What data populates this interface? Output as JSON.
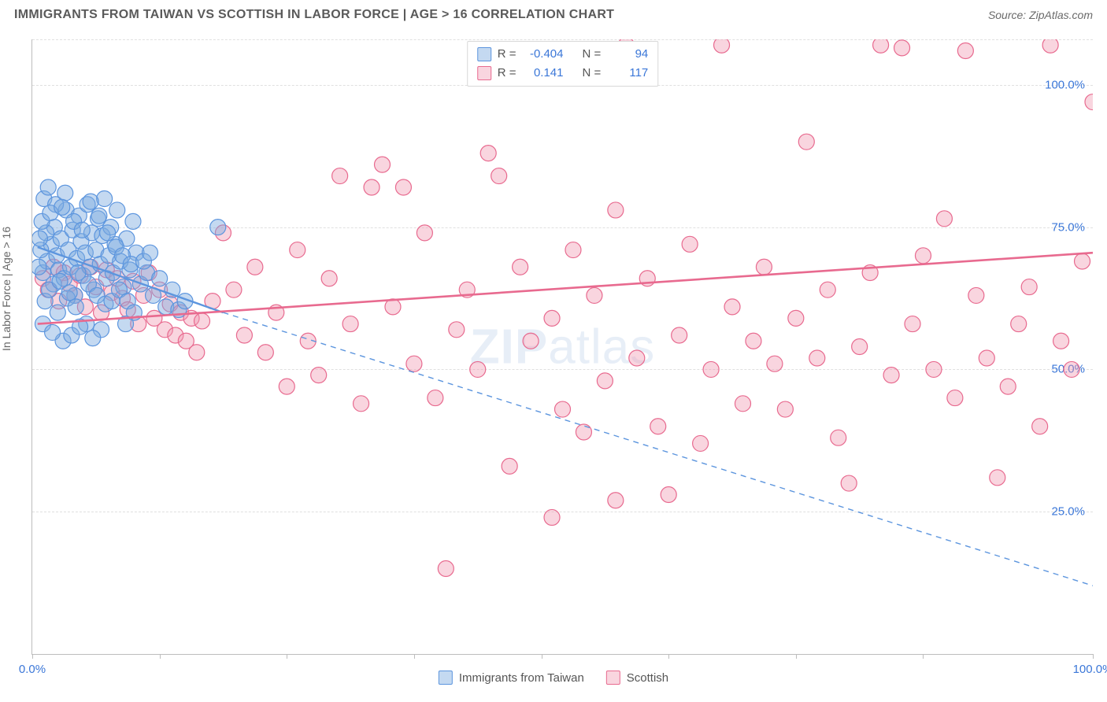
{
  "header": {
    "title": "IMMIGRANTS FROM TAIWAN VS SCOTTISH IN LABOR FORCE | AGE > 16 CORRELATION CHART",
    "source_prefix": "Source: ",
    "source_name": "ZipAtlas.com"
  },
  "chart": {
    "type": "scatter",
    "ylabel": "In Labor Force | Age > 16",
    "xlim": [
      0,
      100
    ],
    "ylim": [
      0,
      108
    ],
    "xtick_positions": [
      0,
      12,
      24,
      36,
      48,
      60,
      72,
      84,
      100
    ],
    "xtick_labels_shown": {
      "0": "0.0%",
      "100": "100.0%"
    },
    "ytick_positions": [
      25,
      50,
      75,
      100
    ],
    "ytick_labels": [
      "25.0%",
      "50.0%",
      "75.0%",
      "100.0%"
    ],
    "grid_positions_y": [
      25,
      50,
      75,
      100,
      108
    ],
    "grid_color": "#e0e0e0",
    "axis_color": "#bdbdbd",
    "label_color_axis": "#3b77d8",
    "background_color": "#ffffff",
    "marker_radius": 10,
    "marker_opacity": 0.55,
    "series": [
      {
        "name": "Immigrants from Taiwan",
        "key": "taiwan",
        "color_stroke": "#5c95de",
        "color_fill": "rgba(125,170,225,0.45)",
        "R": "-0.404",
        "N": "94",
        "trend": {
          "x1": 0.5,
          "y1": 71.5,
          "x2": 18,
          "y2": 60,
          "dash": false,
          "width": 2.4
        },
        "trend_ext": {
          "x1": 18,
          "y1": 60,
          "x2": 100,
          "y2": 12,
          "dash": true,
          "width": 1.4
        },
        "points": [
          [
            1,
            67
          ],
          [
            1.4,
            69
          ],
          [
            1.8,
            72
          ],
          [
            2,
            65
          ],
          [
            2.1,
            75
          ],
          [
            2.3,
            70
          ],
          [
            2.5,
            67.5
          ],
          [
            2.7,
            73
          ],
          [
            3,
            66
          ],
          [
            3.2,
            78
          ],
          [
            3.4,
            71
          ],
          [
            3.6,
            68
          ],
          [
            3.8,
            74.5
          ],
          [
            4,
            63
          ],
          [
            4.2,
            69.5
          ],
          [
            4.4,
            77
          ],
          [
            4.6,
            72.5
          ],
          [
            4.8,
            66.5
          ],
          [
            5,
            70.5
          ],
          [
            5.2,
            79
          ],
          [
            5.4,
            68
          ],
          [
            5.6,
            74
          ],
          [
            5.8,
            64
          ],
          [
            6,
            71
          ],
          [
            6.2,
            76.5
          ],
          [
            6.4,
            68.5
          ],
          [
            6.6,
            73.5
          ],
          [
            6.8,
            80
          ],
          [
            7,
            66
          ],
          [
            7.2,
            70
          ],
          [
            7.4,
            75
          ],
          [
            7.6,
            67
          ],
          [
            7.8,
            72
          ],
          [
            8,
            78
          ],
          [
            8.3,
            69
          ],
          [
            8.6,
            64.5
          ],
          [
            8.9,
            73
          ],
          [
            9.2,
            67.5
          ],
          [
            9.5,
            76
          ],
          [
            9.8,
            70.5
          ],
          [
            1.2,
            62
          ],
          [
            1.6,
            64
          ],
          [
            2.4,
            60
          ],
          [
            3.3,
            62.5
          ],
          [
            4.1,
            61
          ],
          [
            5.1,
            58
          ],
          [
            1.1,
            80
          ],
          [
            1.5,
            82
          ],
          [
            2.2,
            79
          ],
          [
            3.1,
            81
          ],
          [
            0.8,
            71
          ],
          [
            0.6,
            68
          ],
          [
            1.3,
            74
          ],
          [
            2.6,
            65.5
          ],
          [
            3.5,
            63.5
          ],
          [
            4.3,
            67
          ],
          [
            5.3,
            65
          ],
          [
            6.1,
            63
          ],
          [
            6.9,
            61.5
          ],
          [
            7.5,
            62
          ],
          [
            8.2,
            64
          ],
          [
            9.0,
            62
          ],
          [
            9.6,
            60
          ],
          [
            10.2,
            65
          ],
          [
            10.8,
            67
          ],
          [
            11.4,
            63
          ],
          [
            12.0,
            66
          ],
          [
            12.6,
            61
          ],
          [
            13.2,
            64
          ],
          [
            13.8,
            60.5
          ],
          [
            14.4,
            62
          ],
          [
            2.9,
            55
          ],
          [
            3.7,
            56
          ],
          [
            4.5,
            57.5
          ],
          [
            1.0,
            58
          ],
          [
            1.9,
            56.5
          ],
          [
            0.7,
            73
          ],
          [
            0.9,
            76
          ],
          [
            1.7,
            77.5
          ],
          [
            2.8,
            78.5
          ],
          [
            3.9,
            76
          ],
          [
            4.7,
            74.5
          ],
          [
            5.5,
            79.5
          ],
          [
            6.3,
            77
          ],
          [
            7.1,
            74
          ],
          [
            7.9,
            71.5
          ],
          [
            8.5,
            70
          ],
          [
            9.3,
            68.5
          ],
          [
            10.5,
            69
          ],
          [
            11.1,
            70.5
          ],
          [
            17.5,
            75
          ],
          [
            8.8,
            58
          ],
          [
            6.5,
            57
          ],
          [
            5.7,
            55.5
          ]
        ]
      },
      {
        "name": "Scottish",
        "key": "scottish",
        "color_stroke": "#e86a8f",
        "color_fill": "rgba(240,150,175,0.40)",
        "R": "0.141",
        "N": "117",
        "trend": {
          "x1": 0.5,
          "y1": 58,
          "x2": 100,
          "y2": 70.5,
          "dash": false,
          "width": 2.6
        },
        "points": [
          [
            1,
            66
          ],
          [
            1.5,
            64
          ],
          [
            2,
            68
          ],
          [
            2.5,
            62
          ],
          [
            3,
            67
          ],
          [
            3.5,
            65
          ],
          [
            4,
            63
          ],
          [
            4.5,
            66.5
          ],
          [
            5,
            61
          ],
          [
            5.5,
            68
          ],
          [
            6,
            64.5
          ],
          [
            6.5,
            60
          ],
          [
            7,
            67.5
          ],
          [
            7.5,
            63.5
          ],
          [
            8,
            66
          ],
          [
            8.5,
            62.5
          ],
          [
            9,
            60.5
          ],
          [
            9.5,
            65.5
          ],
          [
            10,
            58
          ],
          [
            10.5,
            63
          ],
          [
            11,
            67
          ],
          [
            11.5,
            59
          ],
          [
            12,
            64
          ],
          [
            12.5,
            57
          ],
          [
            13,
            61.5
          ],
          [
            13.5,
            56
          ],
          [
            14,
            60
          ],
          [
            14.5,
            55
          ],
          [
            15,
            59
          ],
          [
            15.5,
            53
          ],
          [
            16,
            58.5
          ],
          [
            17,
            62
          ],
          [
            18,
            74
          ],
          [
            19,
            64
          ],
          [
            20,
            56
          ],
          [
            21,
            68
          ],
          [
            22,
            53
          ],
          [
            23,
            60
          ],
          [
            24,
            47
          ],
          [
            25,
            71
          ],
          [
            26,
            55
          ],
          [
            27,
            49
          ],
          [
            28,
            66
          ],
          [
            29,
            84
          ],
          [
            30,
            58
          ],
          [
            31,
            44
          ],
          [
            32,
            82
          ],
          [
            33,
            86
          ],
          [
            34,
            61
          ],
          [
            35,
            82
          ],
          [
            36,
            51
          ],
          [
            37,
            74
          ],
          [
            38,
            45
          ],
          [
            39,
            15
          ],
          [
            40,
            57
          ],
          [
            41,
            64
          ],
          [
            42,
            50
          ],
          [
            43,
            88
          ],
          [
            44,
            84
          ],
          [
            45,
            33
          ],
          [
            46,
            68
          ],
          [
            47,
            55
          ],
          [
            48,
            105
          ],
          [
            49,
            59
          ],
          [
            50,
            43
          ],
          [
            51,
            71
          ],
          [
            52,
            39
          ],
          [
            53,
            63
          ],
          [
            54,
            48
          ],
          [
            55,
            78
          ],
          [
            56,
            107
          ],
          [
            57,
            52
          ],
          [
            58,
            66
          ],
          [
            59,
            40
          ],
          [
            60,
            28
          ],
          [
            61,
            56
          ],
          [
            62,
            72
          ],
          [
            63,
            37
          ],
          [
            64,
            50
          ],
          [
            65,
            107
          ],
          [
            66,
            61
          ],
          [
            67,
            44
          ],
          [
            68,
            55
          ],
          [
            69,
            68
          ],
          [
            70,
            51
          ],
          [
            71,
            43
          ],
          [
            72,
            59
          ],
          [
            73,
            90
          ],
          [
            74,
            52
          ],
          [
            75,
            64
          ],
          [
            76,
            38
          ],
          [
            77,
            30
          ],
          [
            78,
            54
          ],
          [
            79,
            67
          ],
          [
            80,
            107
          ],
          [
            81,
            49
          ],
          [
            82,
            106.5
          ],
          [
            83,
            58
          ],
          [
            84,
            70
          ],
          [
            85,
            50
          ],
          [
            86,
            76.5
          ],
          [
            87,
            45
          ],
          [
            88,
            106
          ],
          [
            89,
            63
          ],
          [
            90,
            52
          ],
          [
            91,
            31
          ],
          [
            92,
            47
          ],
          [
            93,
            58
          ],
          [
            94,
            64.5
          ],
          [
            95,
            40
          ],
          [
            96,
            107
          ],
          [
            97,
            55
          ],
          [
            98,
            50
          ],
          [
            99,
            69
          ],
          [
            100,
            97
          ],
          [
            49,
            24
          ],
          [
            55,
            27
          ]
        ]
      }
    ]
  },
  "legend_top": {
    "r_label": "R =",
    "n_label": "N ="
  },
  "legend_bottom": {
    "taiwan_label": "Immigrants from Taiwan",
    "scottish_label": "Scottish"
  },
  "watermark": {
    "zip": "ZIP",
    "atlas": "atlas"
  }
}
